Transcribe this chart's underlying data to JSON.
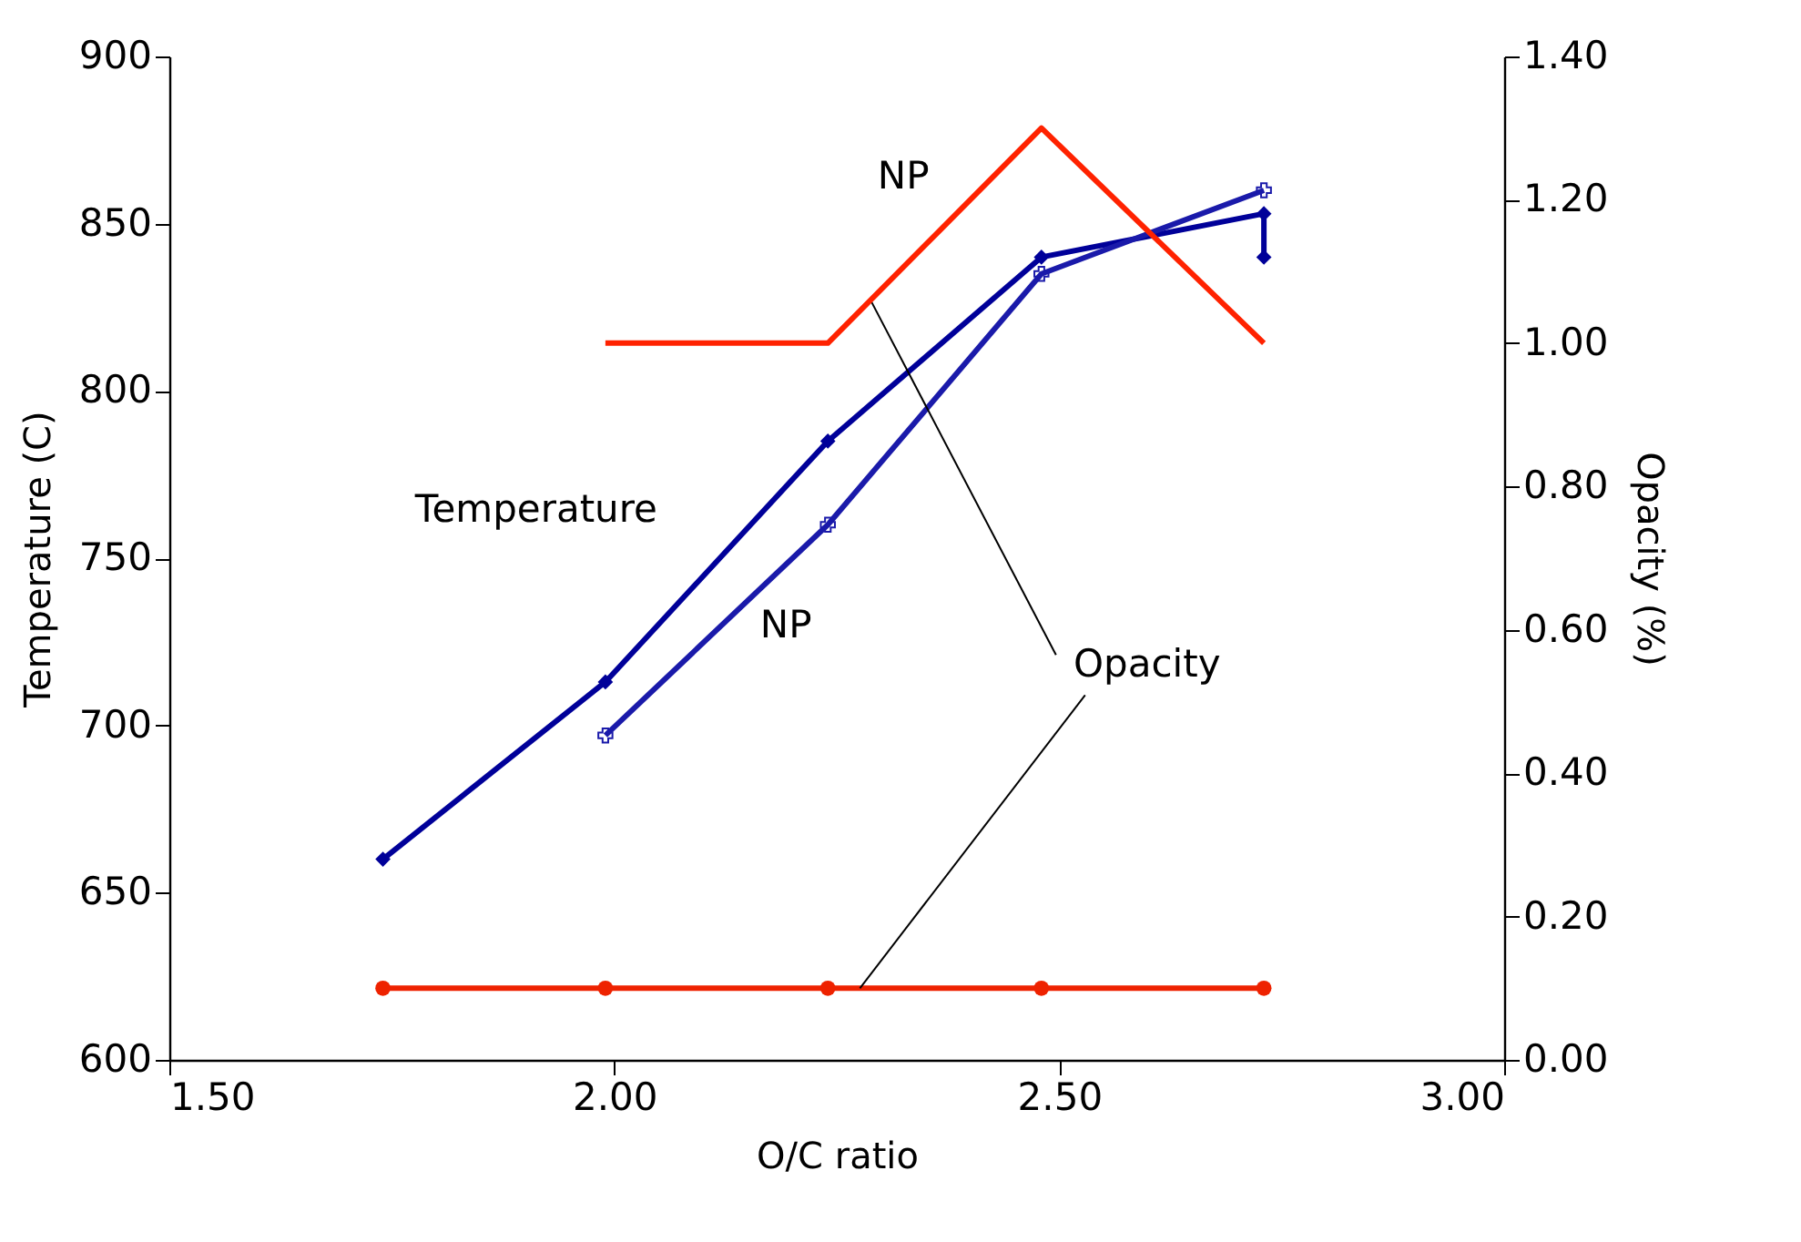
{
  "chart_data": {
    "type": "line",
    "xlabel": "O/C ratio",
    "ylabel": "Temperature (C)",
    "y2label": "Opacity (%)",
    "xlim": [
      1.5,
      3.0
    ],
    "xticks": [
      {
        "value": 1.5,
        "label": "1.50"
      },
      {
        "value": 2.0,
        "label": "2.00"
      },
      {
        "value": 2.5,
        "label": "2.50"
      },
      {
        "value": 3.0,
        "label": "3.00"
      }
    ],
    "ylim": [
      600,
      900
    ],
    "yticks": [
      600,
      650,
      700,
      750,
      800,
      850,
      900
    ],
    "y2lim": [
      0,
      1.4
    ],
    "y2ticks": [
      {
        "value": 0,
        "label": "0.00"
      },
      {
        "value": 0.2,
        "label": "0.20"
      },
      {
        "value": 0.4,
        "label": "0.40"
      },
      {
        "value": 0.6,
        "label": "0.60"
      },
      {
        "value": 0.8,
        "label": "0.80"
      },
      {
        "value": 1.0,
        "label": "1.00"
      },
      {
        "value": 1.2,
        "label": "1.20"
      },
      {
        "value": 1.4,
        "label": "1.40"
      }
    ],
    "grid": false,
    "series": [
      {
        "name": "Temperature",
        "color": "#000099",
        "marker": "diamond",
        "x": [
          1.74,
          1.99,
          2.24,
          2.48,
          2.73,
          2.73
        ],
        "values": [
          660,
          713,
          785,
          840,
          853,
          840
        ]
      },
      {
        "name": "NP",
        "color": "#1a1aaa",
        "marker": "cross",
        "x": [
          1.99,
          2.24,
          2.48,
          2.73
        ],
        "values": [
          697,
          760,
          835,
          860
        ]
      },
      {
        "name": "Opacity",
        "color": "#ee2200",
        "marker": "circle",
        "axis": "y2",
        "x": [
          1.74,
          1.99,
          2.24,
          2.48,
          2.73
        ],
        "values": [
          0.1,
          0.1,
          0.1,
          0.1,
          0.1
        ]
      },
      {
        "name": "NP",
        "color": "#ff2200",
        "marker": "none",
        "axis": "y2",
        "x": [
          1.99,
          2.24,
          2.48,
          2.73
        ],
        "values": [
          1.0,
          1.0,
          1.3,
          1.0
        ]
      }
    ]
  }
}
